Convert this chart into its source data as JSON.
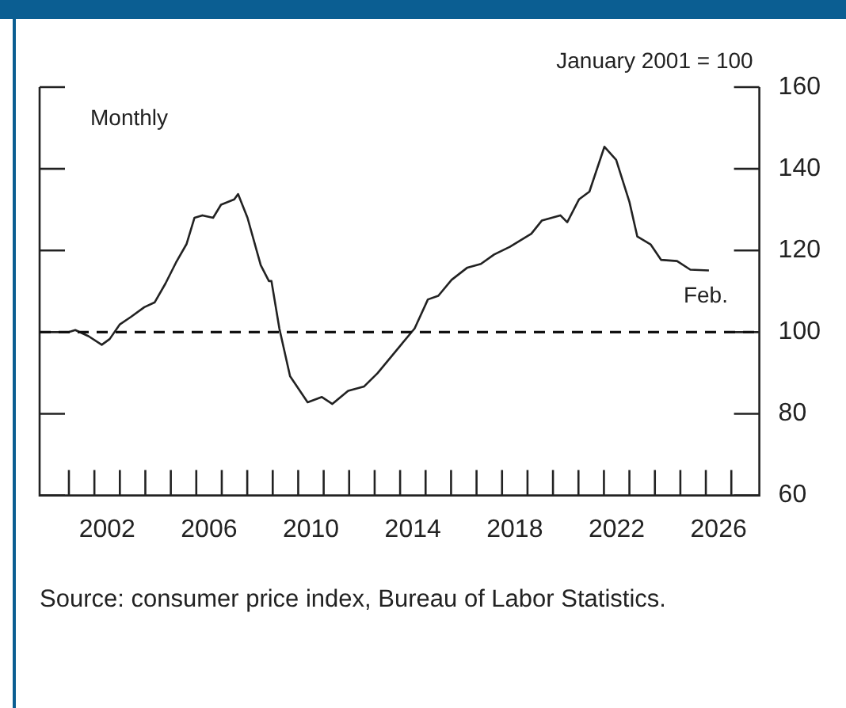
{
  "chart_data": {
    "type": "line",
    "ylabel": "January 2001 = 100",
    "annotations": [
      "Monthly",
      {
        "text": "Feb.",
        "x": 2026.12,
        "y": 115.1
      },
      "Source: consumer price index, Bureau of Labor Statistics."
    ],
    "series": [
      {
        "color": "#222222",
        "x": [
          2001.0,
          2001.25,
          2001.77,
          2002.29,
          2002.6,
          2003.0,
          2003.43,
          2003.96,
          2004.37,
          2004.79,
          2005.2,
          2005.62,
          2005.93,
          2006.24,
          2006.66,
          2006.97,
          2007.49,
          2007.64,
          2008.01,
          2008.53,
          2008.85,
          2008.95,
          2009.26,
          2009.68,
          2010.37,
          2010.93,
          2011.34,
          2011.96,
          2012.59,
          2013.11,
          2014.05,
          2014.57,
          2015.09,
          2015.5,
          2016.02,
          2016.64,
          2017.17,
          2017.69,
          2018.31,
          2019.15,
          2019.56,
          2020.29,
          2020.56,
          2021.02,
          2021.43,
          2022.02,
          2022.48,
          2023.0,
          2023.31,
          2023.83,
          2024.24,
          2024.87,
          2025.39,
          2026.12
        ],
        "values": [
          100,
          100.5,
          99.0,
          96.9,
          98.3,
          101.9,
          103.7,
          106.1,
          107.3,
          111.9,
          117.0,
          121.6,
          128.0,
          128.6,
          128.0,
          131.2,
          132.5,
          133.8,
          128.0,
          116.4,
          112.5,
          112.5,
          100.9,
          89.2,
          82.8,
          84.1,
          82.4,
          85.6,
          86.7,
          89.9,
          97.0,
          100.9,
          108.0,
          108.9,
          112.8,
          115.8,
          116.7,
          119.0,
          120.9,
          124.1,
          127.3,
          128.6,
          126.9,
          132.5,
          134.4,
          145.4,
          142.2,
          131.9,
          123.4,
          121.5,
          117.7,
          117.4,
          115.3,
          115.1
        ]
      }
    ],
    "xlim": [
      1999.85,
      2028.1
    ],
    "xticks": [
      {
        "value": 2001,
        "label": null
      },
      {
        "value": 2002,
        "label": null
      },
      {
        "value": 2003,
        "label": null
      },
      {
        "value": 2004,
        "label": null
      },
      {
        "value": 2005,
        "label": null
      },
      {
        "value": 2006,
        "label": null
      },
      {
        "value": 2007,
        "label": null
      },
      {
        "value": 2008,
        "label": null
      },
      {
        "value": 2009,
        "label": null
      },
      {
        "value": 2010,
        "label": null
      },
      {
        "value": 2011,
        "label": null
      },
      {
        "value": 2012,
        "label": null
      },
      {
        "value": 2013,
        "label": null
      },
      {
        "value": 2014,
        "label": null
      },
      {
        "value": 2015,
        "label": null
      },
      {
        "value": 2016,
        "label": null
      },
      {
        "value": 2017,
        "label": null
      },
      {
        "value": 2018,
        "label": null
      },
      {
        "value": 2019,
        "label": null
      },
      {
        "value": 2020,
        "label": null
      },
      {
        "value": 2021,
        "label": null
      },
      {
        "value": 2022,
        "label": null
      },
      {
        "value": 2023,
        "label": null
      },
      {
        "value": 2024,
        "label": null
      },
      {
        "value": 2025,
        "label": null
      },
      {
        "value": 2026,
        "label": null
      },
      {
        "value": 2027,
        "label": null
      },
      {
        "value": 2002.5,
        "label": "2002"
      },
      {
        "value": 2006.5,
        "label": "2006"
      },
      {
        "value": 2010.5,
        "label": "2010"
      },
      {
        "value": 2014.5,
        "label": "2014"
      },
      {
        "value": 2018.5,
        "label": "2018"
      },
      {
        "value": 2022.5,
        "label": "2022"
      },
      {
        "value": 2026.5,
        "label": "2026"
      }
    ],
    "ylim": [
      60,
      160
    ],
    "yticks": [
      60,
      80,
      100,
      120,
      140,
      160
    ],
    "ref_lines": [
      {
        "axis": "y",
        "value": 100,
        "color": "#111111",
        "line_style": "dashed"
      }
    ],
    "grid": false,
    "legend": false,
    "marker": "none",
    "line_style": "solid"
  }
}
